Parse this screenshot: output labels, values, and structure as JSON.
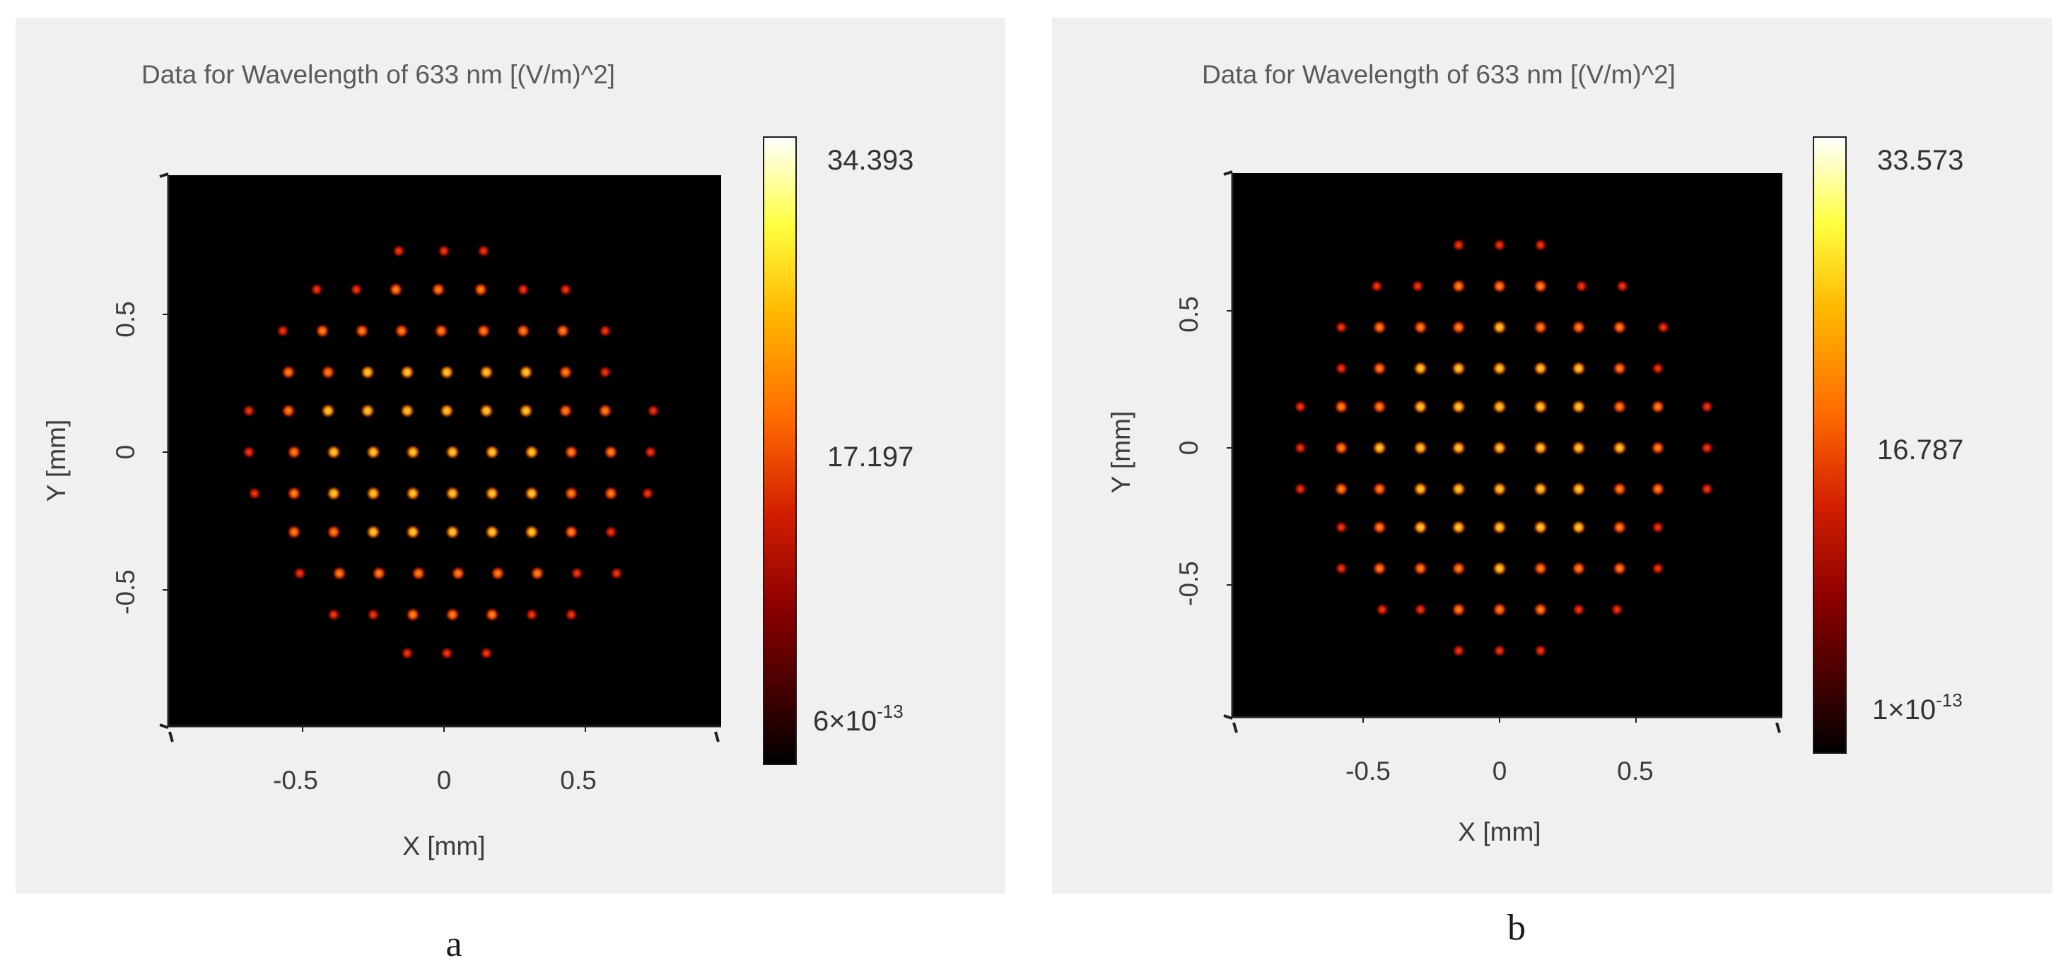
{
  "figure": {
    "panels": [
      {
        "caption": "a",
        "title": "Data for Wavelength of 633 nm  [(V/m)^2]",
        "xlabel": "X [mm]",
        "ylabel": "Y [mm]",
        "xticks": [
          "-0.5",
          "0",
          "0.5"
        ],
        "yticks": [
          "0.5",
          "0",
          "-0.5"
        ],
        "colorbar": {
          "max_label": "34.393",
          "mid_label": "17.197",
          "min_base": "6×10",
          "min_exp": "-13"
        }
      },
      {
        "caption": "b",
        "title": "Data for Wavelength of 633 nm  [(V/m)^2]",
        "xlabel": "X [mm]",
        "ylabel": "Y [mm]",
        "xticks": [
          "-0.5",
          "0",
          "0.5"
        ],
        "yticks": [
          "0.5",
          "0",
          "-0.5"
        ],
        "colorbar": {
          "max_label": "33.573",
          "mid_label": "16.787",
          "min_base": "1×10",
          "min_exp": "-13"
        }
      }
    ]
  },
  "chart_data": [
    {
      "type": "heatmap",
      "title": "Data for Wavelength of 633 nm  [(V/m)^2]",
      "xlabel": "X [mm]",
      "ylabel": "Y [mm]",
      "xlim": [
        -0.95,
        0.95
      ],
      "ylim": [
        -0.95,
        0.95
      ],
      "colorbar_range": [
        6e-13,
        34.393
      ],
      "colormap": [
        "#000000",
        "#5a0000",
        "#c81200",
        "#ff5a00",
        "#ffb400",
        "#ffff40",
        "#ffffff"
      ],
      "spot_pattern": "hexagonal spot array within circular aperture",
      "spot_pitch_x_mm": 0.138,
      "rows": [
        {
          "y": 0.73,
          "x": [
            -0.16,
            0.0,
            0.14
          ]
        },
        {
          "y": 0.59,
          "x": [
            -0.45,
            -0.31,
            -0.17,
            -0.02,
            0.13,
            0.28,
            0.43
          ]
        },
        {
          "y": 0.44,
          "x": [
            -0.57,
            -0.43,
            -0.29,
            -0.15,
            -0.01,
            0.14,
            0.28,
            0.42,
            0.57
          ]
        },
        {
          "y": 0.29,
          "x": [
            -0.55,
            -0.41,
            -0.27,
            -0.13,
            0.01,
            0.15,
            0.29,
            0.43,
            0.57
          ]
        },
        {
          "y": 0.15,
          "x": [
            -0.69,
            -0.55,
            -0.41,
            -0.27,
            -0.13,
            0.01,
            0.15,
            0.29,
            0.43,
            0.57,
            0.74
          ]
        },
        {
          "y": 0.0,
          "x": [
            -0.69,
            -0.53,
            -0.39,
            -0.25,
            -0.11,
            0.03,
            0.17,
            0.31,
            0.45,
            0.59,
            0.73
          ]
        },
        {
          "y": -0.15,
          "x": [
            -0.67,
            -0.53,
            -0.39,
            -0.25,
            -0.11,
            0.03,
            0.17,
            0.31,
            0.45,
            0.59,
            0.72
          ]
        },
        {
          "y": -0.29,
          "x": [
            -0.53,
            -0.39,
            -0.25,
            -0.11,
            0.03,
            0.17,
            0.31,
            0.45,
            0.59
          ]
        },
        {
          "y": -0.44,
          "x": [
            -0.51,
            -0.37,
            -0.23,
            -0.09,
            0.05,
            0.19,
            0.33,
            0.47,
            0.61
          ]
        },
        {
          "y": -0.59,
          "x": [
            -0.39,
            -0.25,
            -0.11,
            0.03,
            0.17,
            0.31,
            0.45
          ]
        },
        {
          "y": -0.73,
          "x": [
            -0.13,
            0.01,
            0.15
          ]
        }
      ]
    },
    {
      "type": "heatmap",
      "title": "Data for Wavelength of 633 nm  [(V/m)^2]",
      "xlabel": "X [mm]",
      "ylabel": "Y [mm]",
      "xlim": [
        -1.0,
        0.95
      ],
      "ylim": [
        -1.0,
        0.95
      ],
      "colorbar_range": [
        1e-13,
        33.573
      ],
      "colormap": [
        "#000000",
        "#5a0000",
        "#c81200",
        "#ff5a00",
        "#ffb400",
        "#ffff40",
        "#ffffff"
      ],
      "spot_pattern": "hexagonal spot array within circular aperture",
      "spot_pitch_x_mm": 0.146,
      "rows": [
        {
          "y": 0.74,
          "x": [
            -0.15,
            0.0,
            0.15
          ]
        },
        {
          "y": 0.59,
          "x": [
            -0.45,
            -0.3,
            -0.15,
            0.0,
            0.15,
            0.3,
            0.45
          ]
        },
        {
          "y": 0.44,
          "x": [
            -0.58,
            -0.44,
            -0.29,
            -0.15,
            0.0,
            0.15,
            0.29,
            0.44,
            0.6
          ]
        },
        {
          "y": 0.29,
          "x": [
            -0.58,
            -0.44,
            -0.29,
            -0.15,
            0.0,
            0.15,
            0.29,
            0.44,
            0.58
          ]
        },
        {
          "y": 0.15,
          "x": [
            -0.73,
            -0.58,
            -0.44,
            -0.29,
            -0.15,
            0.0,
            0.15,
            0.29,
            0.44,
            0.58,
            0.76
          ]
        },
        {
          "y": 0.0,
          "x": [
            -0.73,
            -0.58,
            -0.44,
            -0.29,
            -0.15,
            0.0,
            0.15,
            0.29,
            0.44,
            0.58,
            0.76
          ]
        },
        {
          "y": -0.15,
          "x": [
            -0.73,
            -0.58,
            -0.44,
            -0.29,
            -0.15,
            0.0,
            0.15,
            0.29,
            0.44,
            0.58,
            0.76
          ]
        },
        {
          "y": -0.29,
          "x": [
            -0.58,
            -0.44,
            -0.29,
            -0.15,
            0.0,
            0.15,
            0.29,
            0.44,
            0.58
          ]
        },
        {
          "y": -0.44,
          "x": [
            -0.58,
            -0.44,
            -0.29,
            -0.15,
            0.0,
            0.15,
            0.29,
            0.44,
            0.58
          ]
        },
        {
          "y": -0.59,
          "x": [
            -0.43,
            -0.29,
            -0.15,
            0.0,
            0.15,
            0.29,
            0.43
          ]
        },
        {
          "y": -0.74,
          "x": [
            -0.15,
            0.0,
            0.15
          ]
        }
      ]
    }
  ]
}
